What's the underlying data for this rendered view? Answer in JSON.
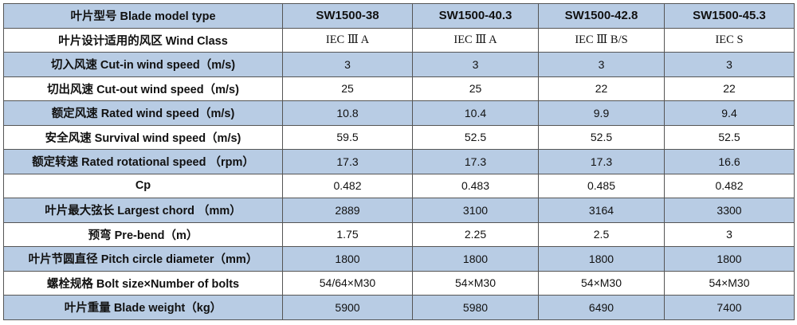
{
  "header": {
    "label": "叶片型号 Blade model type",
    "models": [
      "SW1500-38",
      "SW1500-40.3",
      "SW1500-42.8",
      "SW1500-45.3"
    ]
  },
  "rows": [
    {
      "label": "叶片设计适用的风区 Wind Class",
      "values": [
        "IEC Ⅲ A",
        "IEC Ⅲ A",
        "IEC Ⅲ B/S",
        "IEC S"
      ]
    },
    {
      "label": "切入风速 Cut-in wind speed（m/s)",
      "values": [
        "3",
        "3",
        "3",
        "3"
      ]
    },
    {
      "label": "切出风速 Cut-out wind speed（m/s)",
      "values": [
        "25",
        "25",
        "22",
        "22"
      ]
    },
    {
      "label": "额定风速 Rated wind speed（m/s)",
      "values": [
        "10.8",
        "10.4",
        "9.9",
        "9.4"
      ]
    },
    {
      "label": "安全风速 Survival wind speed（m/s)",
      "values": [
        "59.5",
        "52.5",
        "52.5",
        "52.5"
      ]
    },
    {
      "label": "额定转速 Rated rotational speed （rpm）",
      "values": [
        "17.3",
        "17.3",
        "17.3",
        "16.6"
      ]
    },
    {
      "label": "Cp",
      "values": [
        "0.482",
        "0.483",
        "0.485",
        "0.482"
      ]
    },
    {
      "label": "叶片最大弦长 Largest chord （mm）",
      "values": [
        "2889",
        "3100",
        "3164",
        "3300"
      ]
    },
    {
      "label": "预弯 Pre-bend（m）",
      "values": [
        "1.75",
        "2.25",
        "2.5",
        "3"
      ]
    },
    {
      "label": "叶片节圆直径 Pitch circle diameter（mm）",
      "values": [
        "1800",
        "1800",
        "1800",
        "1800"
      ]
    },
    {
      "label": "螺栓规格 Bolt size×Number of bolts",
      "values": [
        "54/64×M30",
        "54×M30",
        "54×M30",
        "54×M30"
      ]
    },
    {
      "label": "叶片重量 Blade weight（kg）",
      "values": [
        "5900",
        "5980",
        "6490",
        "7400"
      ]
    }
  ],
  "colors": {
    "shaded_row": "#b8cce4",
    "plain_row": "#ffffff",
    "border": "#555555"
  }
}
